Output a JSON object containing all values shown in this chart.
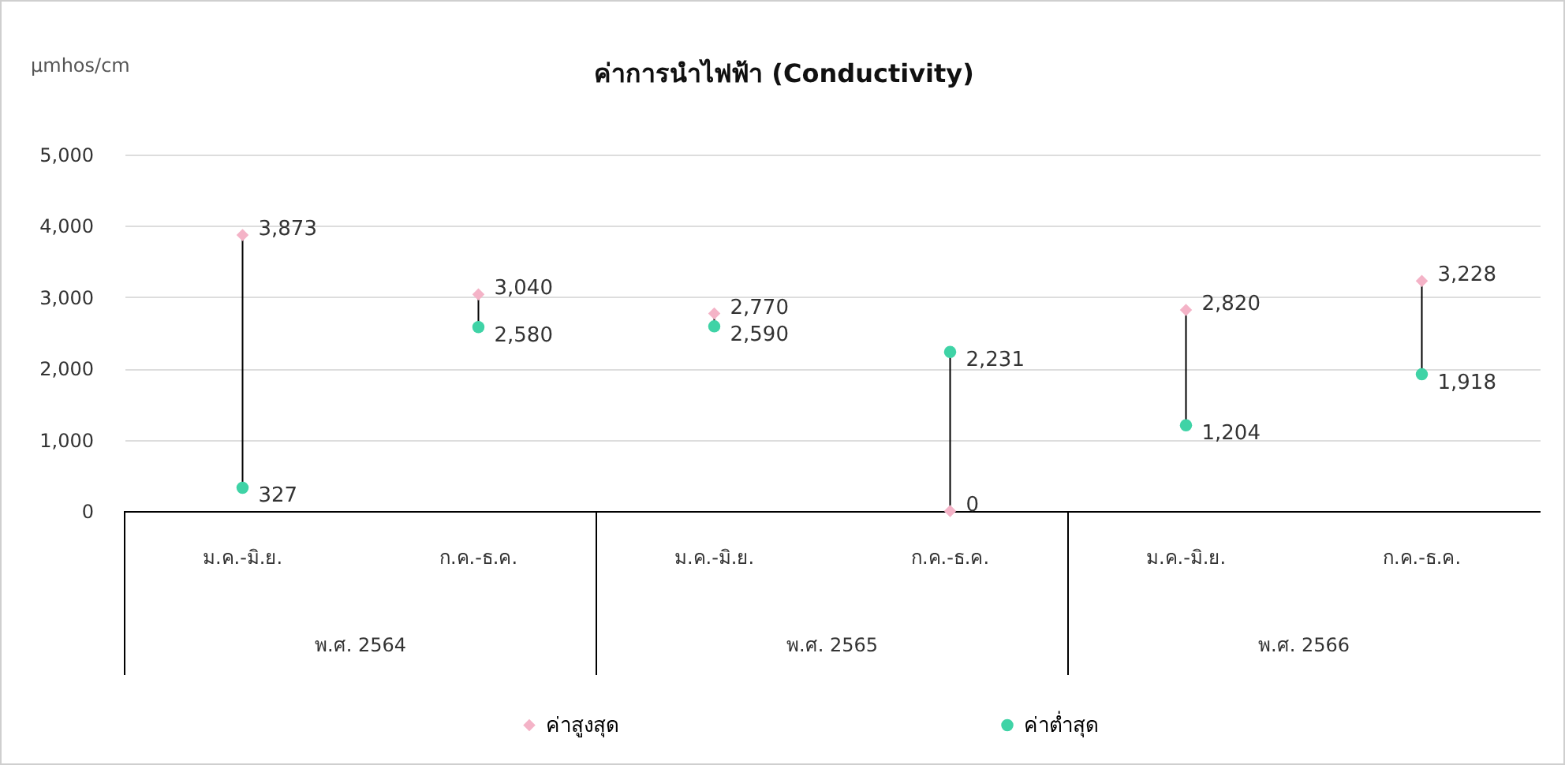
{
  "chart_data": {
    "type": "scatter",
    "title": "ค่าการนำไฟฟ้า (Conductivity)",
    "ylabel": "µmhos/cm",
    "categories": [
      "ม.ค.-มิ.ย.",
      "ก.ค.-ธ.ค.",
      "ม.ค.-มิ.ย.",
      "ก.ค.-ธ.ค.",
      "ม.ค.-มิ.ย.",
      "ก.ค.-ธ.ค."
    ],
    "annotations": [
      "พ.ศ. 2564",
      "พ.ศ. 2565",
      "พ.ศ. 2566"
    ],
    "series": [
      {
        "name": "ค่าสูงสุด",
        "color": "#f4b3c7",
        "marker": "diamond",
        "values": [
          3873,
          3040,
          2770,
          0,
          2820,
          3228
        ],
        "value_labels": [
          "3,873",
          "3,040",
          "2,770",
          "0",
          "2,820",
          "3,228"
        ]
      },
      {
        "name": "ค่าต่ำสุด",
        "color": "#3fd3a6",
        "marker": "circle",
        "values": [
          327,
          2580,
          2590,
          2231,
          1204,
          1918
        ],
        "value_labels": [
          "327",
          "2,580",
          "2,590",
          "2,231",
          "1,204",
          "1,918"
        ]
      }
    ],
    "ylim": [
      0,
      5000
    ],
    "yticks": [
      0,
      {
        "value": 1000,
        "label": "1,000"
      },
      {
        "value": 2000,
        "label": "2,000"
      },
      {
        "value": 3000,
        "label": "3,000"
      },
      {
        "value": 4000,
        "label": "4,000"
      },
      {
        "value": 5000,
        "label": "5,000"
      }
    ],
    "grid": "y",
    "legend": "bottom"
  }
}
